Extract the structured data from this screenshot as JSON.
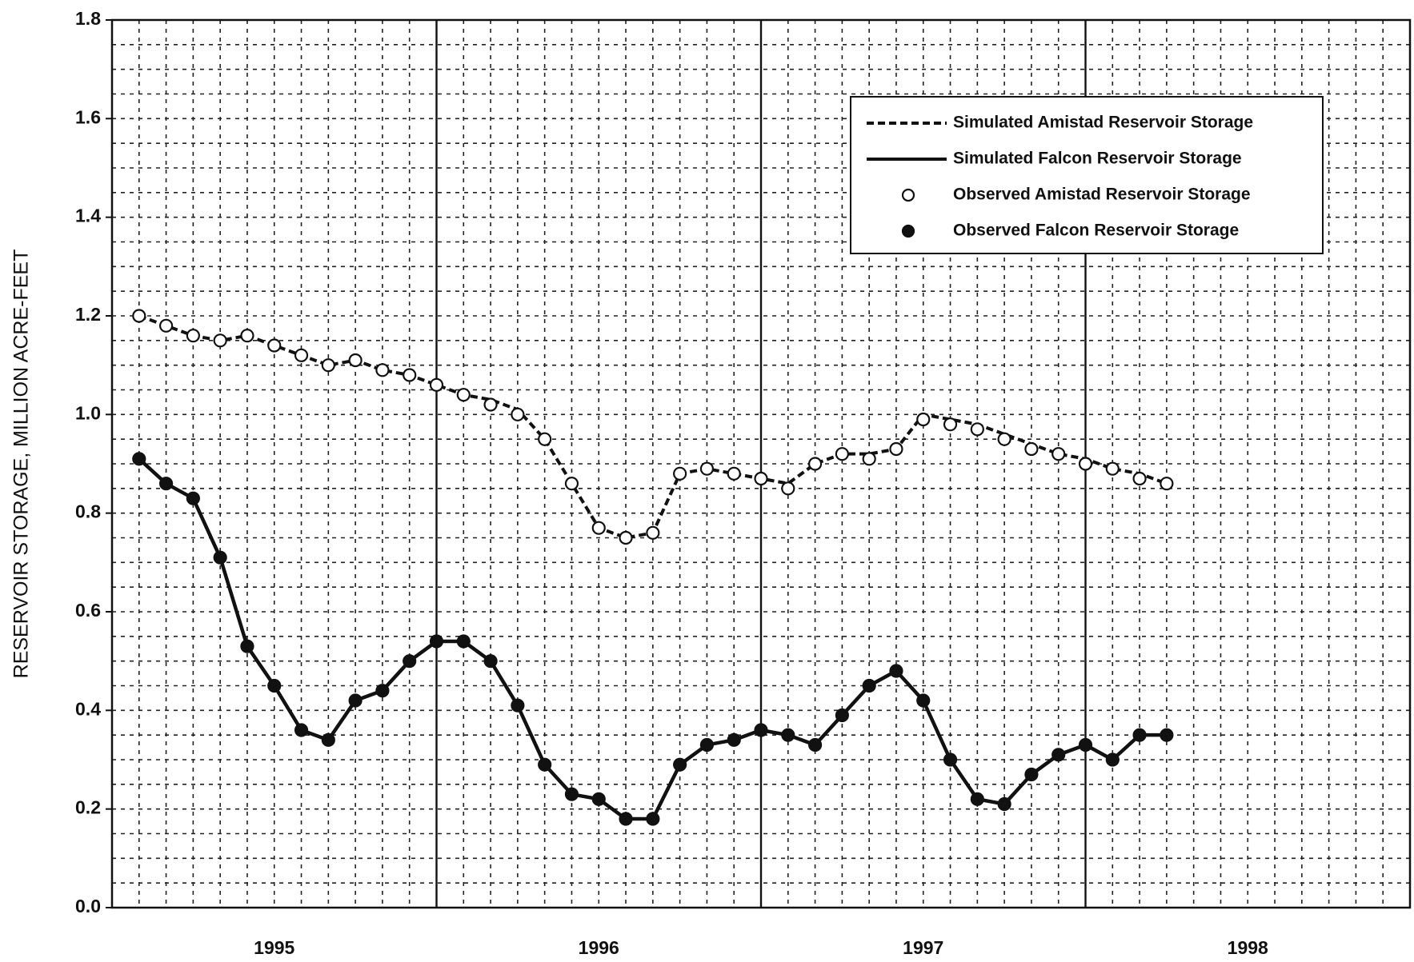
{
  "chart_data": {
    "type": "line",
    "y_label": "RESERVOIR STORAGE, MILLION ACRE-FEET",
    "x": [
      1,
      2,
      3,
      4,
      5,
      6,
      7,
      8,
      9,
      10,
      11,
      12,
      13,
      14,
      15,
      16,
      17,
      18,
      19,
      20,
      21,
      22,
      23,
      24,
      25,
      26,
      27,
      28,
      29,
      30,
      31,
      32,
      33,
      34,
      35,
      36,
      37,
      38,
      39
    ],
    "xlim": [
      0,
      48
    ],
    "xticks": [
      {
        "value": 6,
        "label": "1995"
      },
      {
        "value": 18,
        "label": "1996"
      },
      {
        "value": 30,
        "label": "1997"
      },
      {
        "value": 42,
        "label": "1998"
      }
    ],
    "year_boundaries": [
      12,
      24,
      36
    ],
    "ylim": [
      0,
      1.8
    ],
    "yticks": [
      {
        "value": 0,
        "label": "0.0"
      },
      0.2,
      0.4,
      0.6,
      0.8,
      {
        "value": 1,
        "label": "1.0"
      },
      1.2,
      1.4,
      1.6,
      1.8
    ],
    "grid": true,
    "legend": "upper right",
    "series": [
      {
        "name": "Simulated Amistad Reservoir Storage",
        "color": "#111111",
        "line": "dashed",
        "marker": "none",
        "values": [
          1.2,
          1.18,
          1.16,
          1.15,
          1.16,
          1.14,
          1.12,
          1.1,
          1.11,
          1.09,
          1.08,
          1.06,
          1.04,
          1.03,
          1.01,
          0.95,
          0.86,
          0.77,
          0.75,
          0.76,
          0.88,
          0.89,
          0.88,
          0.87,
          0.86,
          0.9,
          0.92,
          0.92,
          0.93,
          1.0,
          0.99,
          0.98,
          0.96,
          0.94,
          0.92,
          0.91,
          0.89,
          0.88,
          0.86
        ]
      },
      {
        "name": "Simulated Falcon Reservoir Storage",
        "color": "#111111",
        "line": "solid",
        "marker": "none",
        "values": [
          0.91,
          0.86,
          0.83,
          0.71,
          0.53,
          0.45,
          0.36,
          0.34,
          0.42,
          0.44,
          0.5,
          0.54,
          0.54,
          0.5,
          0.41,
          0.29,
          0.23,
          0.22,
          0.18,
          0.18,
          0.29,
          0.33,
          0.34,
          0.36,
          0.35,
          0.33,
          0.39,
          0.45,
          0.48,
          0.42,
          0.3,
          0.22,
          0.21,
          0.27,
          0.31,
          0.33,
          0.3,
          0.35,
          0.35
        ]
      },
      {
        "name": "Observed Amistad Reservoir Storage",
        "color": "#111111",
        "line": "none",
        "marker": "open",
        "values": [
          1.2,
          1.18,
          1.16,
          1.15,
          1.16,
          1.14,
          1.12,
          1.1,
          1.11,
          1.09,
          1.08,
          1.06,
          1.04,
          1.02,
          1.0,
          0.95,
          0.86,
          0.77,
          0.75,
          0.76,
          0.88,
          0.89,
          0.88,
          0.87,
          0.85,
          0.9,
          0.92,
          0.91,
          0.93,
          0.99,
          0.98,
          0.97,
          0.95,
          0.93,
          0.92,
          0.9,
          0.89,
          0.87,
          0.86
        ]
      },
      {
        "name": "Observed Falcon Reservoir Storage",
        "color": "#111111",
        "line": "none",
        "marker": "filled",
        "values": [
          0.91,
          0.86,
          0.83,
          0.71,
          0.53,
          0.45,
          0.36,
          0.34,
          0.42,
          0.44,
          0.5,
          0.54,
          0.54,
          0.5,
          0.41,
          0.29,
          0.23,
          0.22,
          0.18,
          0.18,
          0.29,
          0.33,
          0.34,
          0.36,
          0.35,
          0.33,
          0.39,
          0.45,
          0.48,
          0.42,
          0.3,
          0.22,
          0.21,
          0.27,
          0.31,
          0.33,
          0.3,
          0.35,
          0.35
        ]
      }
    ]
  }
}
